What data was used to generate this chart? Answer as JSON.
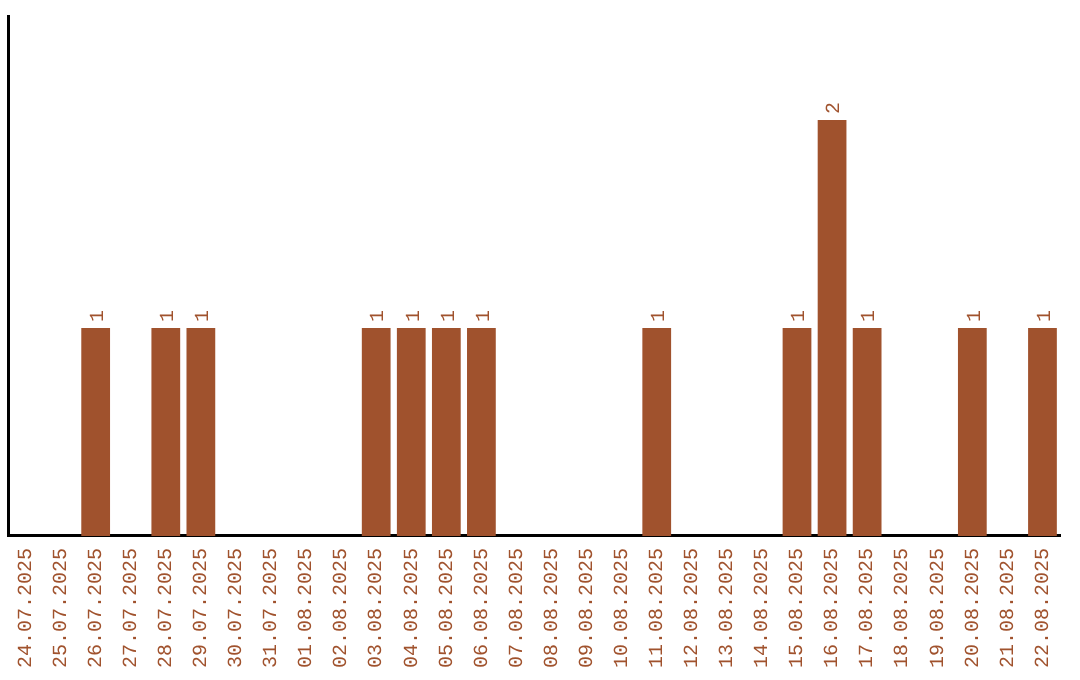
{
  "chart_data": {
    "type": "bar",
    "categories": [
      "24.07.2025",
      "25.07.2025",
      "26.07.2025",
      "27.07.2025",
      "28.07.2025",
      "29.07.2025",
      "30.07.2025",
      "31.07.2025",
      "01.08.2025",
      "02.08.2025",
      "03.08.2025",
      "04.08.2025",
      "05.08.2025",
      "06.08.2025",
      "07.08.2025",
      "08.08.2025",
      "09.08.2025",
      "10.08.2025",
      "11.08.2025",
      "12.08.2025",
      "13.08.2025",
      "14.08.2025",
      "15.08.2025",
      "16.08.2025",
      "17.08.2025",
      "18.08.2025",
      "19.08.2025",
      "20.08.2025",
      "21.08.2025",
      "22.08.2025"
    ],
    "values": [
      0,
      0,
      1,
      0,
      1,
      1,
      0,
      0,
      0,
      0,
      1,
      1,
      1,
      1,
      0,
      0,
      0,
      0,
      1,
      0,
      0,
      0,
      1,
      2,
      1,
      0,
      0,
      1,
      0,
      1
    ],
    "value_labels": [
      null,
      null,
      "1",
      null,
      "1",
      "1",
      null,
      null,
      null,
      null,
      "1",
      "1",
      "1",
      "1",
      null,
      null,
      null,
      null,
      "1",
      null,
      null,
      null,
      "1",
      "2",
      "1",
      null,
      null,
      "1",
      null,
      "1"
    ],
    "color": "#a0522d",
    "grid": false,
    "legend": false,
    "tick_labels": "x"
  }
}
